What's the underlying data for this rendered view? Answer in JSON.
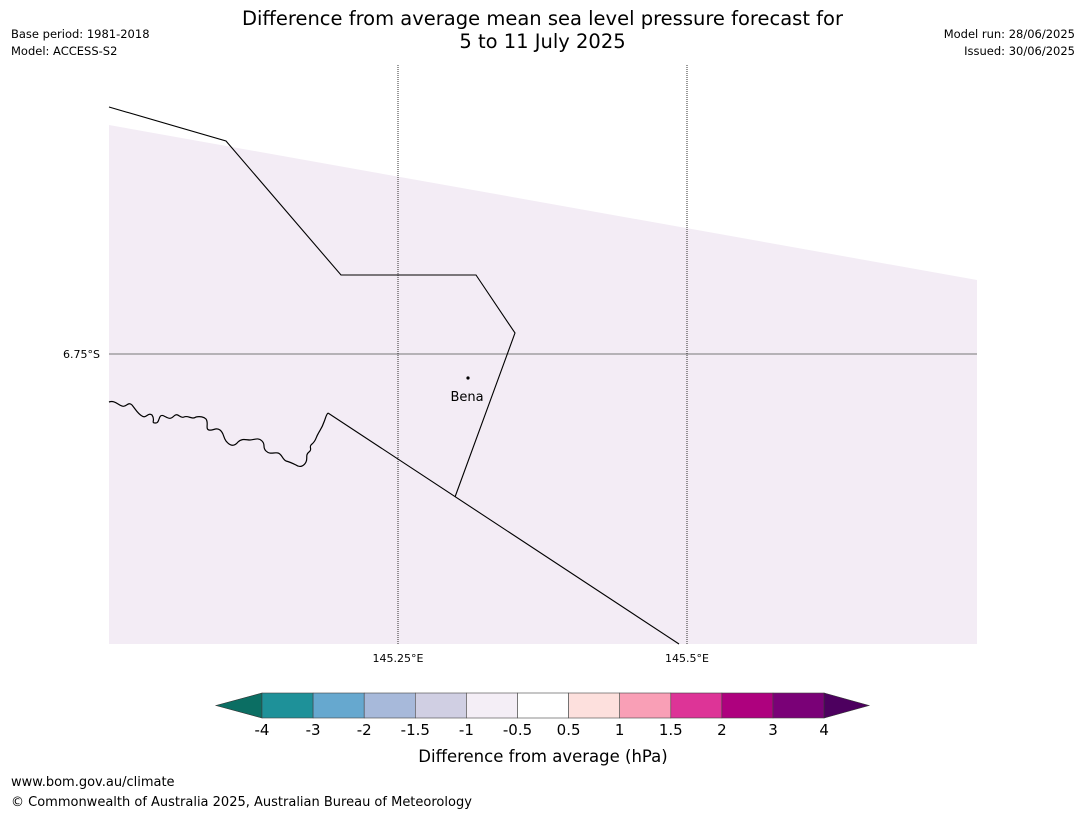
{
  "title": {
    "line1": "Difference from average mean sea level pressure forecast for",
    "line2": "5 to 11 July 2025"
  },
  "meta_left": {
    "base_period": "Base period: 1981-2018",
    "model": "Model: ACCESS-S2"
  },
  "meta_right": {
    "model_run": "Model run: 28/06/2025",
    "issued": "Issued: 30/06/2025"
  },
  "map": {
    "lat_label": "6.75°S",
    "lon_labels": [
      "145.25°E",
      "145.5°E"
    ],
    "place_label": "Bena",
    "fill_color": "#f3ecf5"
  },
  "colorbar": {
    "title": "Difference from average (hPa)",
    "tick_labels": [
      "-4",
      "-3",
      "-2",
      "-1.5",
      "-1",
      "-0.5",
      "0.5",
      "1",
      "1.5",
      "2",
      "3",
      "4"
    ],
    "colors": [
      "#0b6e63",
      "#1e9199",
      "#66a8cf",
      "#a7b9da",
      "#d0cfe3",
      "#f4eef6",
      "#ffffff",
      "#fde0dd",
      "#f99fb6",
      "#dd3497",
      "#ae017e",
      "#7a0177",
      "#4d005f"
    ]
  },
  "footer": {
    "url": "www.bom.gov.au/climate",
    "copyright": "© Commonwealth of Australia 2025, Australian Bureau of Meteorology"
  }
}
